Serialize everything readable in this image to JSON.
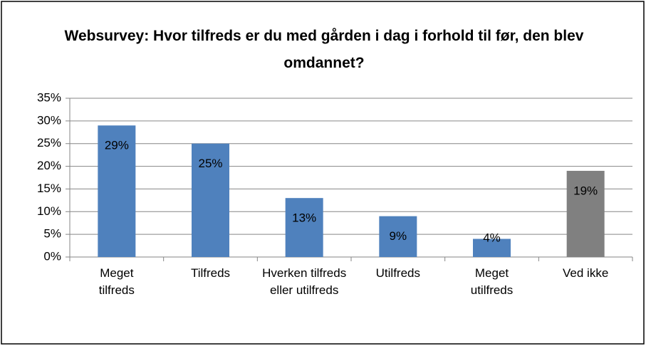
{
  "chart_data": {
    "type": "bar",
    "title": "Websurvey: Hvor tilfreds er du med gården i dag i forhold til før, den blev omdannet?",
    "categories": [
      "Meget tilfreds",
      "Tilfreds",
      "Hverken tilfreds eller utilfreds",
      "Utilfreds",
      "Meget utilfreds",
      "Ved ikke"
    ],
    "values": [
      29,
      25,
      13,
      9,
      4,
      19
    ],
    "value_labels": [
      "29%",
      "25%",
      "13%",
      "9%",
      "4%",
      "19%"
    ],
    "colors": [
      "#4f81bd",
      "#4f81bd",
      "#4f81bd",
      "#4f81bd",
      "#4f81bd",
      "#808080"
    ],
    "ylim": [
      0,
      35
    ],
    "yticks": [
      {
        "value": 0,
        "label": "0%"
      },
      {
        "value": 5,
        "label": "5%"
      },
      {
        "value": 10,
        "label": "10%"
      },
      {
        "value": 15,
        "label": "15%"
      },
      {
        "value": 20,
        "label": "20%"
      },
      {
        "value": 25,
        "label": "25%"
      },
      {
        "value": 30,
        "label": "30%"
      },
      {
        "value": 35,
        "label": "35%"
      }
    ],
    "grid": true
  }
}
